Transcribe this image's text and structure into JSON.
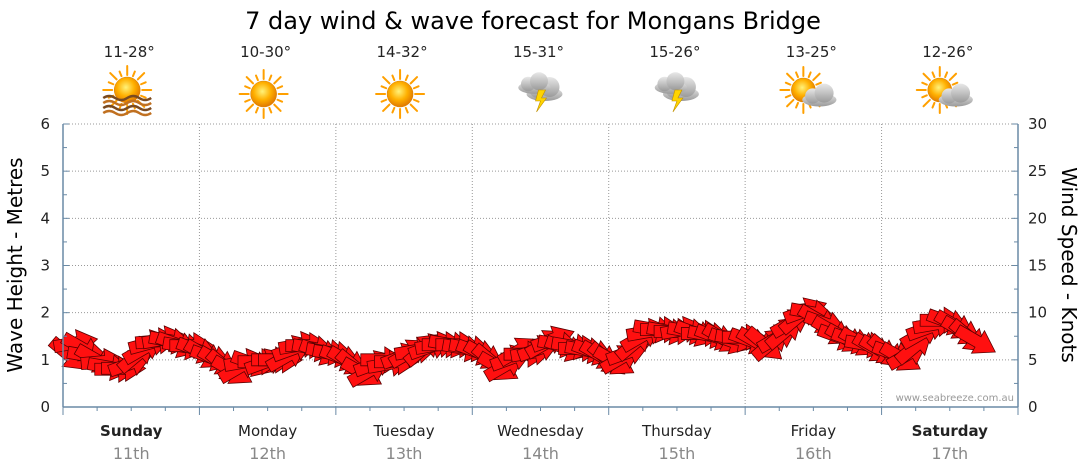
{
  "chart_data": {
    "type": "line",
    "title": "7 day wind & wave forecast for Mongans Bridge",
    "ylabel_left": "Wave Height - Metres",
    "ylabel_right": "Wind Speed - Knots",
    "ylim_left": [
      0,
      6
    ],
    "ylim_right": [
      0,
      30
    ],
    "yticks_left": [
      "0",
      "1",
      "2",
      "3",
      "4",
      "5",
      "6"
    ],
    "yticks_right": [
      "0",
      "5",
      "10",
      "15",
      "20",
      "25",
      "30"
    ],
    "grid": true,
    "credit": "www.seabreeze.com.au",
    "days": [
      {
        "name": "Sunday",
        "date": "11th",
        "temp": "11-28°",
        "icon": "sun-haze-icon",
        "bold": true
      },
      {
        "name": "Monday",
        "date": "12th",
        "temp": "10-30°",
        "icon": "sun-icon",
        "bold": false
      },
      {
        "name": "Tuesday",
        "date": "13th",
        "temp": "14-32°",
        "icon": "sun-icon",
        "bold": false
      },
      {
        "name": "Wednesday",
        "date": "14th",
        "temp": "15-31°",
        "icon": "storm-icon",
        "bold": false
      },
      {
        "name": "Thursday",
        "date": "15th",
        "temp": "15-26°",
        "icon": "storm-icon",
        "bold": false
      },
      {
        "name": "Friday",
        "date": "16th",
        "temp": "13-25°",
        "icon": "partly-cloudy-icon",
        "bold": false
      },
      {
        "name": "Saturday",
        "date": "17th",
        "temp": "12-26°",
        "icon": "partly-cloudy-icon",
        "bold": true
      }
    ],
    "series": [
      {
        "color": "#ff1010",
        "points": [
          {
            "t": 0.0,
            "wind": 5.5,
            "dir": 40
          },
          {
            "t": 0.05,
            "wind": 6.8,
            "dir": -10
          },
          {
            "t": 0.1,
            "wind": 6.2,
            "dir": 30
          },
          {
            "t": 0.15,
            "wind": 5.4,
            "dir": 10
          },
          {
            "t": 0.2,
            "wind": 5.0,
            "dir": 30
          },
          {
            "t": 0.25,
            "wind": 4.8,
            "dir": -5
          },
          {
            "t": 0.3,
            "wind": 4.2,
            "dir": 10
          },
          {
            "t": 0.35,
            "wind": 4.0,
            "dir": 0
          },
          {
            "t": 0.4,
            "wind": 4.1,
            "dir": 0
          },
          {
            "t": 0.45,
            "wind": 4.6,
            "dir": -20
          },
          {
            "t": 0.5,
            "wind": 5.5,
            "dir": -40
          },
          {
            "t": 0.55,
            "wind": 6.2,
            "dir": -30
          },
          {
            "t": 0.6,
            "wind": 6.8,
            "dir": -15
          },
          {
            "t": 0.65,
            "wind": 7.0,
            "dir": -5
          },
          {
            "t": 0.7,
            "wind": 7.2,
            "dir": -10
          },
          {
            "t": 0.75,
            "wind": 7.0,
            "dir": 10
          },
          {
            "t": 0.8,
            "wind": 6.6,
            "dir": 20
          },
          {
            "t": 0.85,
            "wind": 6.4,
            "dir": 10
          },
          {
            "t": 0.9,
            "wind": 6.5,
            "dir": 0
          },
          {
            "t": 0.95,
            "wind": 6.0,
            "dir": 20
          },
          {
            "t": 1.0,
            "wind": 5.5,
            "dir": 30
          },
          {
            "t": 1.05,
            "wind": 5.2,
            "dir": 20
          },
          {
            "t": 1.1,
            "wind": 4.8,
            "dir": 30
          },
          {
            "t": 1.15,
            "wind": 4.2,
            "dir": 40
          },
          {
            "t": 1.2,
            "wind": 3.8,
            "dir": 30
          },
          {
            "t": 1.25,
            "wind": 4.2,
            "dir": -30
          },
          {
            "t": 1.3,
            "wind": 4.8,
            "dir": -10
          },
          {
            "t": 1.35,
            "wind": 4.6,
            "dir": 20
          },
          {
            "t": 1.4,
            "wind": 4.8,
            "dir": 0
          },
          {
            "t": 1.45,
            "wind": 4.8,
            "dir": -20
          },
          {
            "t": 1.5,
            "wind": 5.0,
            "dir": 0
          },
          {
            "t": 1.55,
            "wind": 5.0,
            "dir": 0
          },
          {
            "t": 1.6,
            "wind": 5.4,
            "dir": -30
          },
          {
            "t": 1.65,
            "wind": 6.2,
            "dir": -20
          },
          {
            "t": 1.7,
            "wind": 6.6,
            "dir": -10
          },
          {
            "t": 1.75,
            "wind": 6.5,
            "dir": 0
          },
          {
            "t": 1.8,
            "wind": 6.2,
            "dir": 10
          },
          {
            "t": 1.85,
            "wind": 5.8,
            "dir": 20
          },
          {
            "t": 1.9,
            "wind": 5.8,
            "dir": 10
          },
          {
            "t": 1.95,
            "wind": 5.6,
            "dir": 10
          },
          {
            "t": 2.0,
            "wind": 5.2,
            "dir": 20
          },
          {
            "t": 2.05,
            "wind": 4.8,
            "dir": 30
          },
          {
            "t": 2.1,
            "wind": 4.2,
            "dir": 40
          },
          {
            "t": 2.15,
            "wind": 3.6,
            "dir": 30
          },
          {
            "t": 2.2,
            "wind": 3.8,
            "dir": -30
          },
          {
            "t": 2.25,
            "wind": 4.6,
            "dir": -20
          },
          {
            "t": 2.3,
            "wind": 5.0,
            "dir": 0
          },
          {
            "t": 2.35,
            "wind": 4.6,
            "dir": -10
          },
          {
            "t": 2.4,
            "wind": 4.8,
            "dir": 0
          },
          {
            "t": 2.45,
            "wind": 5.4,
            "dir": -20
          },
          {
            "t": 2.5,
            "wind": 5.8,
            "dir": -30
          },
          {
            "t": 2.55,
            "wind": 6.0,
            "dir": -10
          },
          {
            "t": 2.6,
            "wind": 6.2,
            "dir": -40
          },
          {
            "t": 2.65,
            "wind": 6.4,
            "dir": -20
          },
          {
            "t": 2.7,
            "wind": 6.6,
            "dir": -10
          },
          {
            "t": 2.75,
            "wind": 6.6,
            "dir": 0
          },
          {
            "t": 2.8,
            "wind": 6.6,
            "dir": 10
          },
          {
            "t": 2.85,
            "wind": 6.6,
            "dir": 0
          },
          {
            "t": 2.9,
            "wind": 6.2,
            "dir": 10
          },
          {
            "t": 2.95,
            "wind": 6.2,
            "dir": 10
          },
          {
            "t": 3.0,
            "wind": 5.8,
            "dir": 20
          },
          {
            "t": 3.05,
            "wind": 5.4,
            "dir": 30
          },
          {
            "t": 3.1,
            "wind": 4.8,
            "dir": 40
          },
          {
            "t": 3.15,
            "wind": 4.2,
            "dir": 30
          },
          {
            "t": 3.2,
            "wind": 4.4,
            "dir": -30
          },
          {
            "t": 3.25,
            "wind": 5.2,
            "dir": -20
          },
          {
            "t": 3.3,
            "wind": 6.0,
            "dir": -30
          },
          {
            "t": 3.35,
            "wind": 5.6,
            "dir": 0
          },
          {
            "t": 3.4,
            "wind": 5.8,
            "dir": -10
          },
          {
            "t": 3.45,
            "wind": 6.2,
            "dir": -20
          },
          {
            "t": 3.5,
            "wind": 6.8,
            "dir": -30
          },
          {
            "t": 3.55,
            "wind": 7.2,
            "dir": -20
          },
          {
            "t": 3.6,
            "wind": 6.6,
            "dir": 10
          },
          {
            "t": 3.65,
            "wind": 6.2,
            "dir": 20
          },
          {
            "t": 3.7,
            "wind": 6.4,
            "dir": 10
          },
          {
            "t": 3.75,
            "wind": 6.2,
            "dir": 0
          },
          {
            "t": 3.8,
            "wind": 6.0,
            "dir": 10
          },
          {
            "t": 3.85,
            "wind": 5.8,
            "dir": 20
          },
          {
            "t": 3.9,
            "wind": 5.4,
            "dir": 30
          },
          {
            "t": 3.95,
            "wind": 5.0,
            "dir": 40
          },
          {
            "t": 4.0,
            "wind": 4.8,
            "dir": 30
          },
          {
            "t": 4.05,
            "wind": 5.2,
            "dir": -30
          },
          {
            "t": 4.1,
            "wind": 5.8,
            "dir": -20
          },
          {
            "t": 4.15,
            "wind": 6.8,
            "dir": -40
          },
          {
            "t": 4.2,
            "wind": 7.5,
            "dir": -30
          },
          {
            "t": 4.25,
            "wind": 8.0,
            "dir": -10
          },
          {
            "t": 4.3,
            "wind": 8.2,
            "dir": 10
          },
          {
            "t": 4.35,
            "wind": 8.2,
            "dir": 0
          },
          {
            "t": 4.4,
            "wind": 8.0,
            "dir": 10
          },
          {
            "t": 4.45,
            "wind": 8.0,
            "dir": 0
          },
          {
            "t": 4.5,
            "wind": 8.2,
            "dir": -10
          },
          {
            "t": 4.55,
            "wind": 8.0,
            "dir": 10
          },
          {
            "t": 4.6,
            "wind": 7.8,
            "dir": 20
          },
          {
            "t": 4.65,
            "wind": 7.8,
            "dir": 0
          },
          {
            "t": 4.7,
            "wind": 7.6,
            "dir": 10
          },
          {
            "t": 4.75,
            "wind": 7.4,
            "dir": 20
          },
          {
            "t": 4.8,
            "wind": 7.2,
            "dir": 30
          },
          {
            "t": 4.85,
            "wind": 7.0,
            "dir": 20
          },
          {
            "t": 4.9,
            "wind": 7.2,
            "dir": 10
          },
          {
            "t": 4.95,
            "wind": 7.4,
            "dir": 0
          },
          {
            "t": 5.0,
            "wind": 7.0,
            "dir": 20
          },
          {
            "t": 5.05,
            "wind": 6.8,
            "dir": 30
          },
          {
            "t": 5.1,
            "wind": 6.6,
            "dir": 40
          },
          {
            "t": 5.15,
            "wind": 6.8,
            "dir": -40
          },
          {
            "t": 5.2,
            "wind": 7.4,
            "dir": -30
          },
          {
            "t": 5.25,
            "wind": 8.0,
            "dir": -40
          },
          {
            "t": 5.3,
            "wind": 9.0,
            "dir": -30
          },
          {
            "t": 5.35,
            "wind": 9.6,
            "dir": -40
          },
          {
            "t": 5.4,
            "wind": 10.2,
            "dir": -20
          },
          {
            "t": 5.45,
            "wind": 10.0,
            "dir": 10
          },
          {
            "t": 5.5,
            "wind": 9.2,
            "dir": 30
          },
          {
            "t": 5.55,
            "wind": 8.8,
            "dir": 20
          },
          {
            "t": 5.6,
            "wind": 8.0,
            "dir": 30
          },
          {
            "t": 5.65,
            "wind": 7.4,
            "dir": 20
          },
          {
            "t": 5.7,
            "wind": 7.2,
            "dir": 30
          },
          {
            "t": 5.75,
            "wind": 7.0,
            "dir": 20
          },
          {
            "t": 5.8,
            "wind": 6.8,
            "dir": 30
          },
          {
            "t": 5.85,
            "wind": 6.6,
            "dir": 10
          },
          {
            "t": 5.9,
            "wind": 6.2,
            "dir": 30
          },
          {
            "t": 5.95,
            "wind": 6.0,
            "dir": 30
          },
          {
            "t": 6.0,
            "wind": 5.8,
            "dir": 40
          },
          {
            "t": 6.05,
            "wind": 5.6,
            "dir": 20
          },
          {
            "t": 6.1,
            "wind": 5.2,
            "dir": 30
          },
          {
            "t": 6.15,
            "wind": 5.6,
            "dir": -30
          },
          {
            "t": 6.2,
            "wind": 6.4,
            "dir": -40
          },
          {
            "t": 6.25,
            "wind": 7.8,
            "dir": -30
          },
          {
            "t": 6.3,
            "wind": 8.4,
            "dir": -20
          },
          {
            "t": 6.35,
            "wind": 8.8,
            "dir": -10
          },
          {
            "t": 6.4,
            "wind": 9.2,
            "dir": 0
          },
          {
            "t": 6.45,
            "wind": 9.0,
            "dir": 20
          },
          {
            "t": 6.5,
            "wind": 8.6,
            "dir": 30
          },
          {
            "t": 6.55,
            "wind": 8.0,
            "dir": 30
          },
          {
            "t": 6.6,
            "wind": 7.4,
            "dir": 40
          },
          {
            "t": 6.65,
            "wind": 7.0,
            "dir": 30
          }
        ]
      }
    ]
  }
}
